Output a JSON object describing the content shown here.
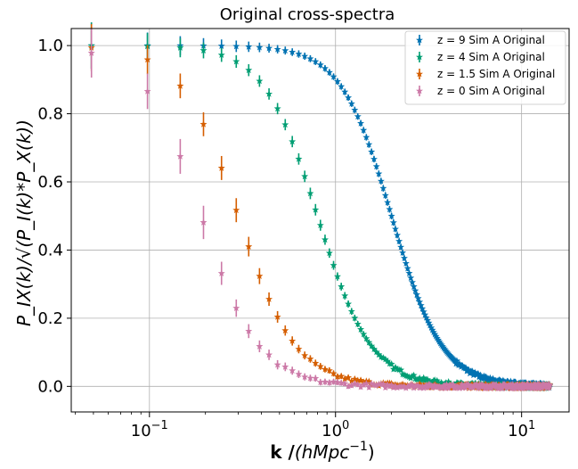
{
  "chart_data": {
    "type": "scatter",
    "title": "Original cross-spectra",
    "xlabel_main": "k /(hMpc",
    "xlabel_sup": "−1",
    "xlabel_tail": ")",
    "ylabel": "P_IX(k)/√(P_I(k)*P_X(k))",
    "xscale": "log",
    "xlim": [
      0.038,
      18
    ],
    "ylim": [
      -0.075,
      1.05
    ],
    "grid": true,
    "legend_position": "top-right",
    "x_tick_labels": [
      {
        "value": 0.1,
        "base": "10",
        "exp": "−1"
      },
      {
        "value": 1,
        "base": "10",
        "exp": "0"
      },
      {
        "value": 10,
        "base": "10",
        "exp": "1"
      }
    ],
    "y_ticks": [
      0.0,
      0.2,
      0.4,
      0.6,
      0.8,
      1.0
    ],
    "y_tick_labels": [
      "0.0",
      "0.2",
      "0.4",
      "0.6",
      "0.8",
      "1.0"
    ],
    "series": [
      {
        "name": "z = 9  Sim A Original",
        "color": "#0072b2",
        "k_half": 2.0,
        "steep": 3.2
      },
      {
        "name": "z = 4  Sim A Original",
        "color": "#009e73",
        "k_half": 0.8,
        "steep": 3.0
      },
      {
        "name": "z = 1.5  Sim A Original",
        "color": "#d55e00",
        "k_half": 0.3,
        "steep": 2.8
      },
      {
        "name": "z = 0  Sim A Original",
        "color": "#cc79a7",
        "k_half": 0.19,
        "steep": 2.8
      }
    ]
  }
}
